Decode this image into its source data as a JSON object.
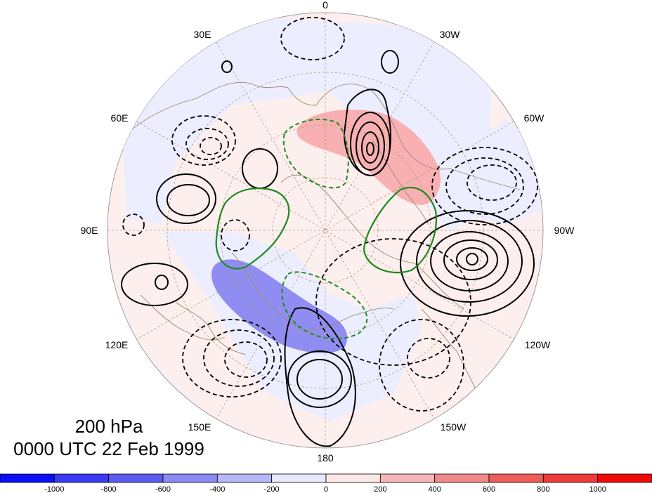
{
  "map": {
    "projection": "north polar stereographic",
    "longitude_labels": [
      "0",
      "30W",
      "60W",
      "90W",
      "120W",
      "150W",
      "180",
      "150E",
      "120E",
      "90E",
      "60E",
      "30E"
    ],
    "fill_colors": {
      "ocean_background": "#eef0ff",
      "land_tint": "#fcefee",
      "positive_anomaly": "#f7a3a6",
      "negative_anomaly": "#8f8df1",
      "coastline": "#a08870",
      "contour_solid": "#000000",
      "contour_green": "#1e8a1e"
    }
  },
  "captions": {
    "level": "200 hPa",
    "time": "0000 UTC 22 Feb 1999"
  },
  "colorbar": {
    "tick_labels": [
      "-1000",
      "-800",
      "-600",
      "-400",
      "-200",
      "0",
      "200",
      "400",
      "600",
      "800",
      "1000"
    ],
    "colors": [
      "#0a0ff5",
      "#3b3bf2",
      "#5b5bf0",
      "#8a8af2",
      "#b6b6f5",
      "#e8e8fb",
      "#fbe8e8",
      "#f7b6b6",
      "#f08a8a",
      "#ee5b5b",
      "#ec3b3b",
      "#f00a0a"
    ]
  }
}
